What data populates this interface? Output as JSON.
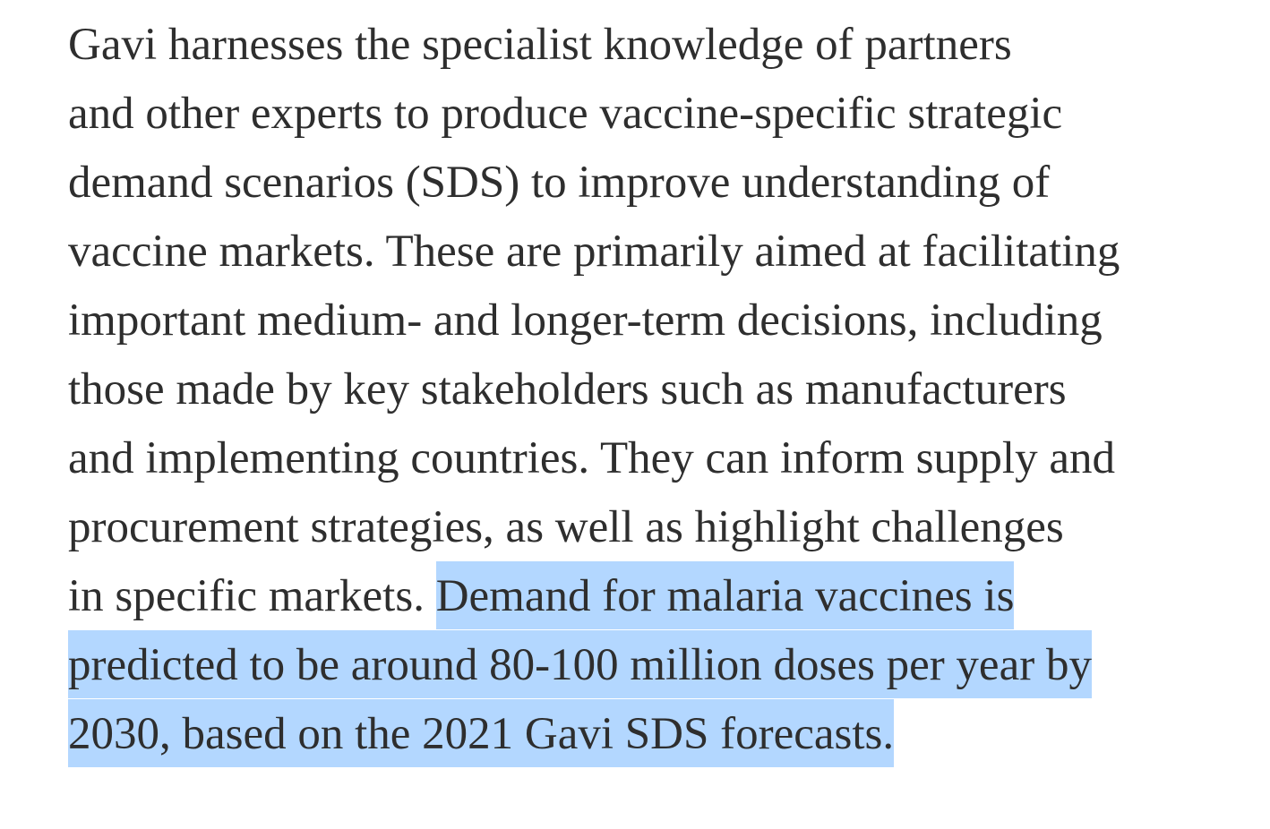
{
  "paragraph": {
    "lines": [
      [
        {
          "text": "Gavi harnesses the specialist knowledge of partners"
        }
      ],
      [
        {
          "text": "and other experts to produce vaccine-specific strategic"
        }
      ],
      [
        {
          "text": "demand scenarios (SDS) to improve understanding of"
        }
      ],
      [
        {
          "text": "vaccine markets. These are primarily aimed at facilitating"
        }
      ],
      [
        {
          "text": "important medium- and longer-term decisions, including"
        }
      ],
      [
        {
          "text": "those made by key stakeholders such as manufacturers"
        }
      ],
      [
        {
          "text": "and implementing countries. They can inform supply and"
        }
      ],
      [
        {
          "text": "procurement strategies, as well as highlight challenges"
        }
      ],
      [
        {
          "text": "in specific markets. "
        },
        {
          "text": "Demand for malaria vaccines is",
          "selected": true
        }
      ],
      [
        {
          "text": "predicted to be around 80-100 million doses per year by",
          "selected": true
        }
      ],
      [
        {
          "text": "2030, based on the 2021 Gavi SDS forecasts.",
          "selected": true
        }
      ]
    ]
  }
}
